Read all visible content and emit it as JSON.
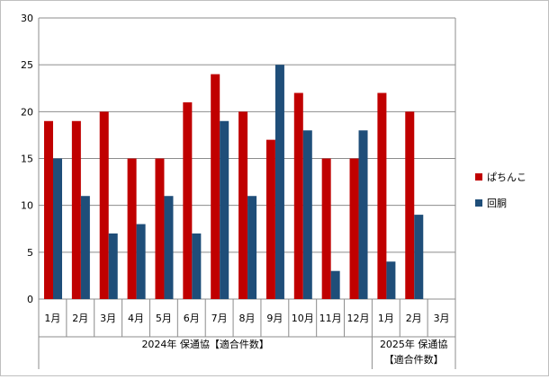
{
  "chart_data": {
    "type": "bar",
    "categories": [
      "1月",
      "2月",
      "3月",
      "4月",
      "5月",
      "6月",
      "7月",
      "8月",
      "9月",
      "10月",
      "11月",
      "12月",
      "1月",
      "2月",
      "3月"
    ],
    "groups": [
      {
        "label": "2024年 保通協【適合件数】",
        "count": 12
      },
      {
        "label_lines": [
          "2025年 保通協",
          "【適合件数】"
        ],
        "count": 3
      }
    ],
    "series": [
      {
        "name": "ぱちんこ",
        "color": "#c00000",
        "values": [
          19,
          19,
          20,
          15,
          15,
          21,
          24,
          20,
          17,
          22,
          15,
          15,
          22,
          20,
          null
        ]
      },
      {
        "name": "回胴",
        "color": "#1f4e79",
        "values": [
          15,
          11,
          7,
          8,
          11,
          7,
          19,
          11,
          25,
          18,
          3,
          18,
          4,
          9,
          null
        ]
      }
    ],
    "ylim": [
      0,
      30
    ],
    "yticks": [
      0,
      5,
      10,
      15,
      20,
      25,
      30
    ],
    "grid": true,
    "legend": "right"
  }
}
